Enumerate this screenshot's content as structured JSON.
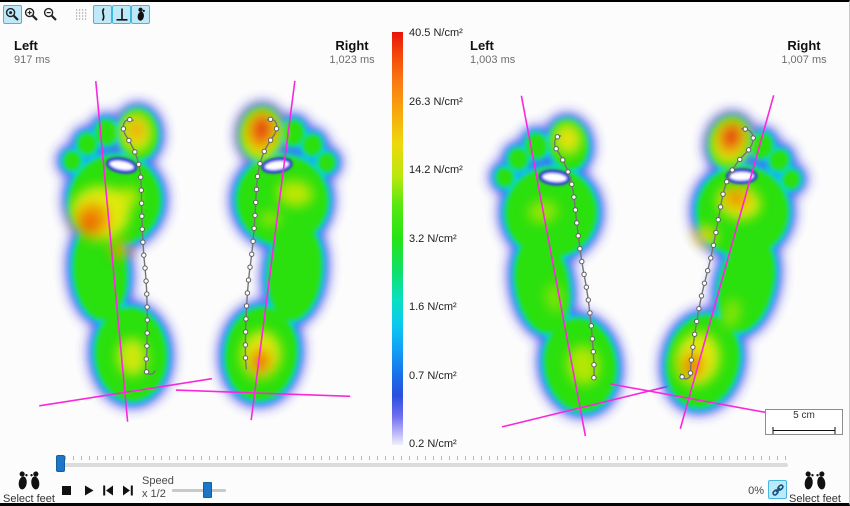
{
  "toolbar": {
    "buttons": [
      {
        "id": "zoom-reset",
        "active": true
      },
      {
        "id": "zoom-in",
        "active": false
      },
      {
        "id": "zoom-out",
        "active": false
      },
      {
        "id": "grid-toggle",
        "active": false
      },
      {
        "id": "gait-line-toggle",
        "active": true
      },
      {
        "id": "foot-axes-toggle",
        "active": true
      },
      {
        "id": "foot-outline-toggle",
        "active": true
      }
    ]
  },
  "feet_views": [
    {
      "side": "Left",
      "duration": "917 ms"
    },
    {
      "side": "Right",
      "duration": "1,023 ms"
    },
    {
      "side": "Left",
      "duration": "1,003 ms"
    },
    {
      "side": "Right",
      "duration": "1,007 ms"
    }
  ],
  "colorbar": {
    "unit": "N/cm²",
    "ticks": [
      "40.5 N/cm²",
      "26.3 N/cm²",
      "14.2 N/cm²",
      "3.2 N/cm²",
      "1.6 N/cm²",
      "0.7 N/cm²",
      "0.2 N/cm²"
    ]
  },
  "scale_box": {
    "label": "5 cm"
  },
  "transport": {
    "speed_label": "Speed",
    "speed_value": "x 1/2",
    "progress": "0%"
  },
  "select_feet": {
    "label": "Select feet"
  },
  "colors": {
    "active_button_bg": "#bfe8f8",
    "active_button_border": "#43b7e2",
    "slider_handle": "#1d76c8",
    "axis_magenta": "#fa28dc",
    "heat_green": "#2ae011"
  }
}
